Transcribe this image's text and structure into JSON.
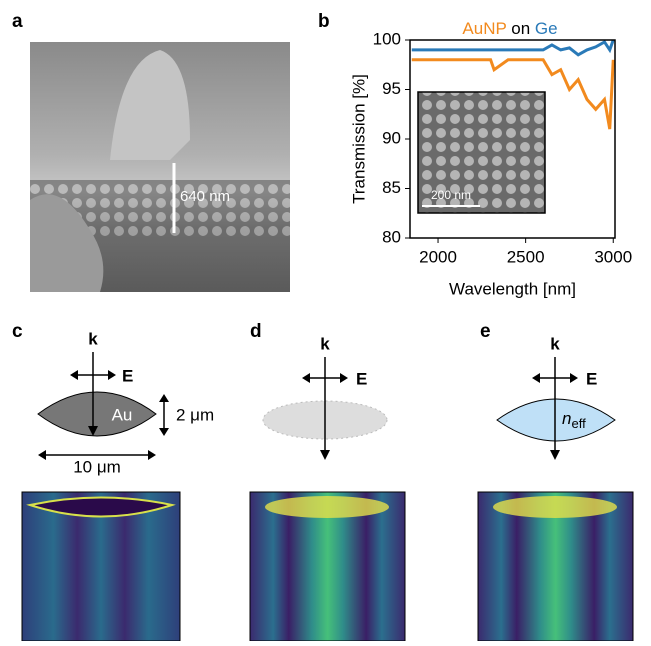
{
  "panels": {
    "a": {
      "label": "a",
      "scale_label": "640 nm"
    },
    "b": {
      "label": "b",
      "inset_scale_label": "200 nm"
    },
    "c": {
      "label": "c",
      "k": "k",
      "E": "E",
      "material": "Au",
      "thickness": "2 μm",
      "width": "10 μm"
    },
    "d": {
      "label": "d",
      "k": "k",
      "E": "E"
    },
    "e": {
      "label": "e",
      "k": "k",
      "E": "E",
      "index_symbol": "n",
      "index_subscript": "eff"
    }
  },
  "chart_data": {
    "type": "line",
    "legend_joiner": "on",
    "x_label": "Wavelength [nm]",
    "y_label": "Transmission [%]",
    "x": [
      1850,
      2000,
      2200,
      2300,
      2320,
      2400,
      2500,
      2600,
      2650,
      2700,
      2750,
      2800,
      2850,
      2900,
      2950,
      2980,
      3000
    ],
    "series": [
      {
        "name": "Ge",
        "color": "#2a7ab8",
        "values": [
          99,
          99,
          99,
          99,
          99,
          99,
          99,
          99,
          99.5,
          99,
          99.2,
          98.5,
          99,
          99.3,
          99.8,
          99,
          100
        ]
      },
      {
        "name": "AuNP",
        "color": "#f28a1e",
        "values": [
          98,
          98,
          98,
          98,
          97,
          98,
          98,
          98,
          96.5,
          97,
          95,
          96,
          94,
          93,
          94,
          91,
          98
        ]
      }
    ],
    "xlim": [
      1840,
      3010
    ],
    "ylim": [
      80,
      100
    ],
    "xticks": [
      2000,
      2500,
      3000
    ],
    "yticks": [
      80,
      85,
      90,
      95,
      100
    ]
  }
}
